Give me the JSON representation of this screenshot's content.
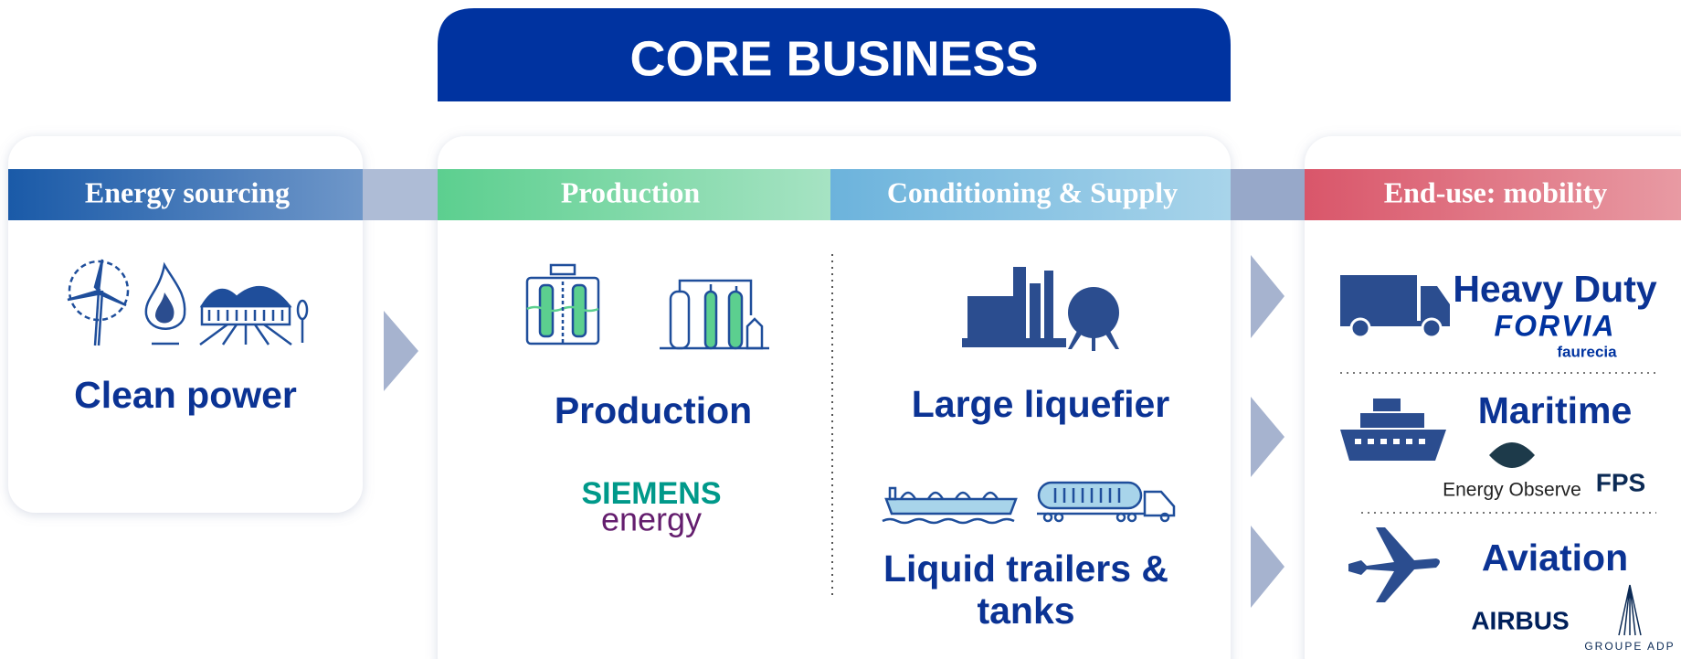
{
  "header": {
    "title": "CORE BUSINESS"
  },
  "stages": [
    {
      "name": "Energy sourcing"
    },
    {
      "name": "Production"
    },
    {
      "name": "Conditioning & Supply"
    },
    {
      "name": "End-use: mobility"
    }
  ],
  "sourcing": {
    "label": "Clean power"
  },
  "production": {
    "label": "Production",
    "partner": {
      "line1": "SIEMENS",
      "line2": "energy"
    }
  },
  "conditioning": {
    "items": [
      {
        "label": "Large liquefier"
      },
      {
        "label_line1": "Liquid trailers &",
        "label_line2": "tanks"
      }
    ]
  },
  "end_use": {
    "items": [
      {
        "label": "Heavy Duty",
        "partners": [
          {
            "name": "FORVIA",
            "sub": "faurecia"
          }
        ]
      },
      {
        "label": "Maritime",
        "partners": [
          {
            "name": "Energy Observe"
          },
          {
            "name": "FPS"
          }
        ]
      },
      {
        "label": "Aviation",
        "partners": [
          {
            "name": "AIRBUS"
          },
          {
            "name": "GROUPE ADP"
          }
        ]
      }
    ]
  }
}
